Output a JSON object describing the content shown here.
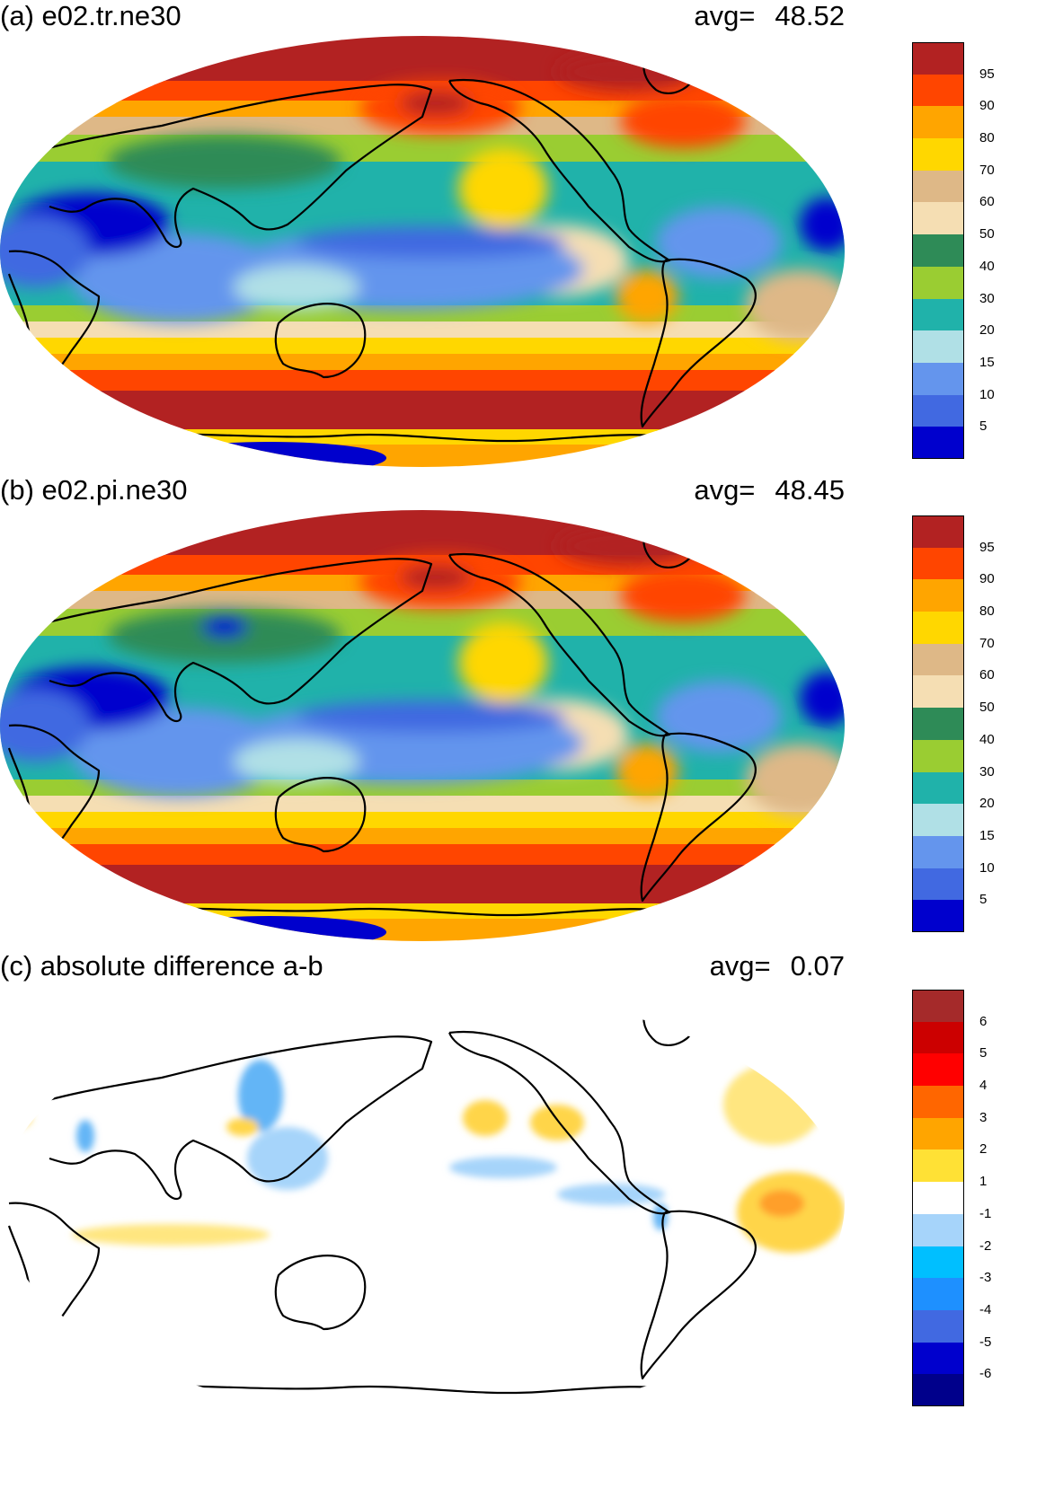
{
  "panels": [
    {
      "title": "(a) e02.tr.ne30",
      "avg_label": "avg=",
      "avg_value": "48.52",
      "colorbar": {
        "ticks": [
          "95",
          "90",
          "80",
          "70",
          "60",
          "50",
          "40",
          "30",
          "20",
          "15",
          "10",
          "5"
        ],
        "colors": [
          "#b22222",
          "#ff4500",
          "#ffa500",
          "#ffd700",
          "#deb887",
          "#f5deb3",
          "#2e8b57",
          "#9acd32",
          "#20b2aa",
          "#b0e0e6",
          "#6495ed",
          "#4169e1",
          "#0000cd"
        ]
      }
    },
    {
      "title": "(b) e02.pi.ne30",
      "avg_label": "avg=",
      "avg_value": "48.45",
      "colorbar": {
        "ticks": [
          "95",
          "90",
          "80",
          "70",
          "60",
          "50",
          "40",
          "30",
          "20",
          "15",
          "10",
          "5"
        ],
        "colors": [
          "#b22222",
          "#ff4500",
          "#ffa500",
          "#ffd700",
          "#deb887",
          "#f5deb3",
          "#2e8b57",
          "#9acd32",
          "#20b2aa",
          "#b0e0e6",
          "#6495ed",
          "#4169e1",
          "#0000cd"
        ]
      }
    },
    {
      "title": "(c) absolute difference a-b",
      "avg_label": "avg=",
      "avg_value": "0.07",
      "colorbar": {
        "ticks": [
          "6",
          "5",
          "4",
          "3",
          "2",
          "1",
          "-1",
          "-2",
          "-3",
          "-4",
          "-5",
          "-6"
        ],
        "colors": [
          "#a52a2a",
          "#cc0000",
          "#ff0000",
          "#ff6600",
          "#ffa500",
          "#ffe135",
          "#ffffff",
          "#a6d4fa",
          "#00bfff",
          "#1e90ff",
          "#4169e1",
          "#0000cd",
          "#00008b"
        ]
      }
    }
  ],
  "palette": {
    "deep_red": "#b22222",
    "orange_red": "#ff4500",
    "orange": "#ffa500",
    "gold": "#ffd700",
    "tan": "#deb887",
    "wheat": "#f5deb3",
    "sea_green": "#2e8b57",
    "yellow_green": "#9acd32",
    "teal": "#20b2aa",
    "powder_blue": "#b0e0e6",
    "cornflower": "#6495ed",
    "royal_blue": "#4169e1",
    "medium_blue": "#0000cd",
    "diff_pos": "#ffd54a",
    "diff_pos_strong": "#ff9f2a",
    "diff_neg": "#a6d4fa",
    "diff_neg_strong": "#64b5f6"
  }
}
